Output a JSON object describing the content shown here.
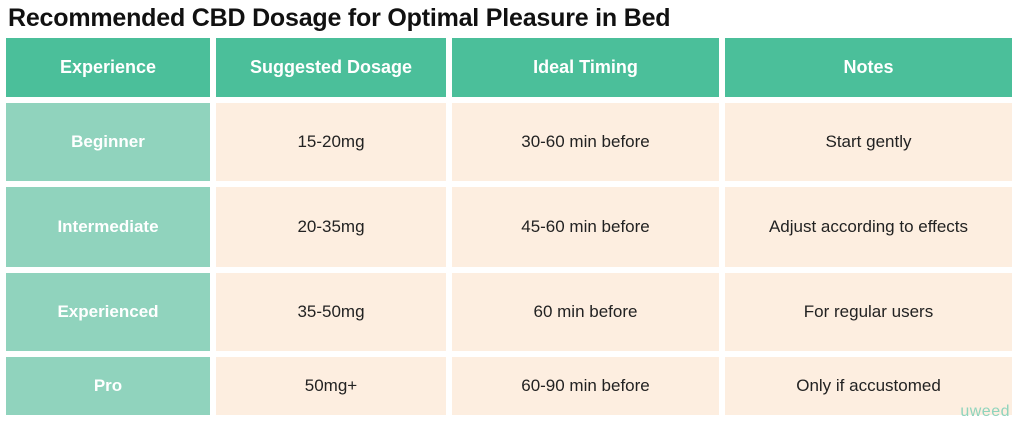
{
  "title": "Recommended CBD Dosage for Optimal Pleasure in Bed",
  "table": {
    "headers": [
      "Experience",
      "Suggested Dosage",
      "Ideal Timing",
      "Notes"
    ],
    "rows": [
      [
        "Beginner",
        "15-20mg",
        "30-60 min before",
        "Start gently"
      ],
      [
        "Intermediate",
        "20-35mg",
        "45-60 min before",
        "Adjust according to effects"
      ],
      [
        "Experienced",
        "35-50mg",
        "60 min before",
        "For regular users"
      ],
      [
        "Pro",
        "50mg+",
        "60-90 min before",
        "Only if accustomed"
      ]
    ]
  },
  "brand": "uweed",
  "colors": {
    "header": "#4bbf9a",
    "label_cell": "#90d3bd",
    "value_cell": "#fdeee0"
  }
}
